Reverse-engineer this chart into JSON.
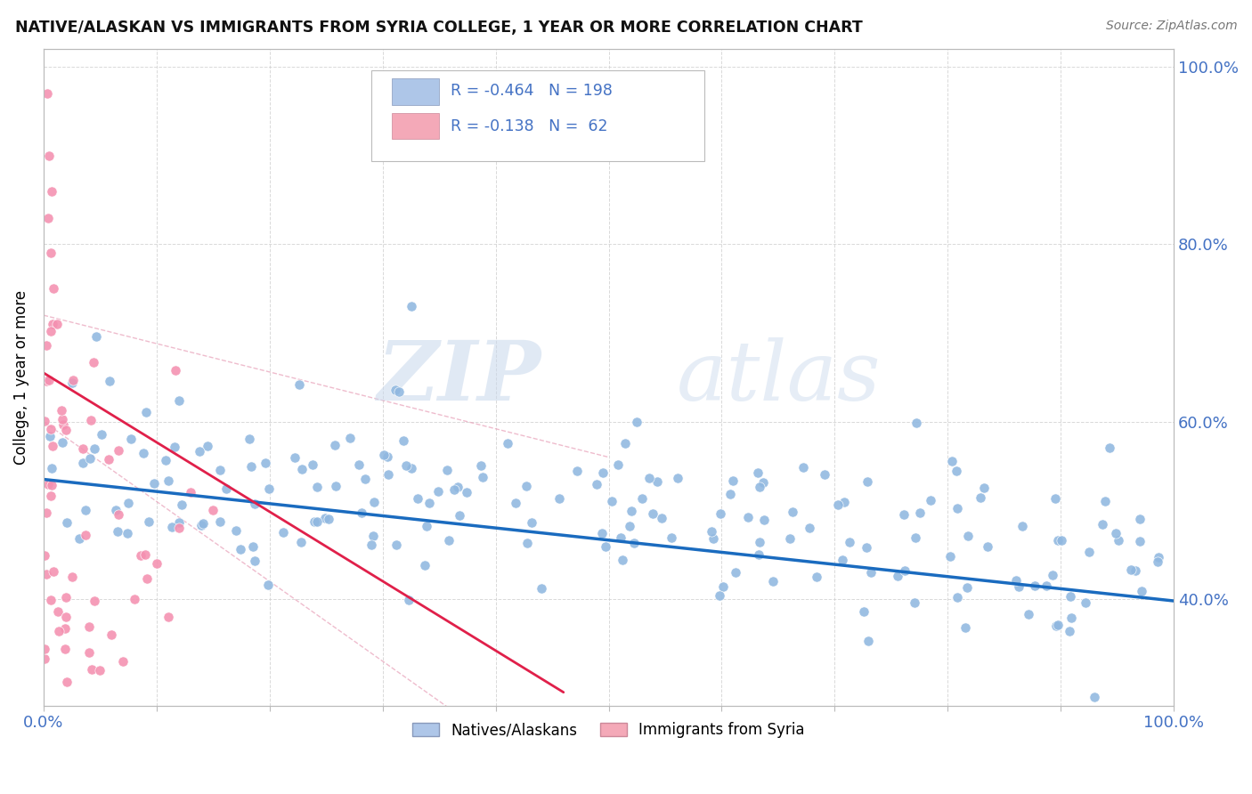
{
  "title": "NATIVE/ALASKAN VS IMMIGRANTS FROM SYRIA COLLEGE, 1 YEAR OR MORE CORRELATION CHART",
  "source": "Source: ZipAtlas.com",
  "ylabel": "College, 1 year or more",
  "legend_entry1": {
    "label": "Natives/Alaskans",
    "color": "#aec6e8",
    "R": "-0.464",
    "N": "198"
  },
  "legend_entry2": {
    "label": "Immigrants from Syria",
    "color": "#f4a9b8",
    "R": "-0.138",
    "N": "62"
  },
  "blue_dot_color": "#90b8e0",
  "pink_dot_color": "#f490b0",
  "blue_line_color": "#1a6bbf",
  "pink_line_color": "#e0204a",
  "pink_ci_color": "#e8a0b8",
  "watermark_zip": "ZIP",
  "watermark_atlas": "atlas",
  "background_color": "#ffffff",
  "grid_color": "#d0d0d0",
  "axis_label_color": "#4472c4",
  "r_value_blue": -0.464,
  "r_value_pink": -0.138,
  "n_blue": 198,
  "n_pink": 62,
  "xlim": [
    0.0,
    1.0
  ],
  "ylim": [
    0.28,
    1.02
  ]
}
